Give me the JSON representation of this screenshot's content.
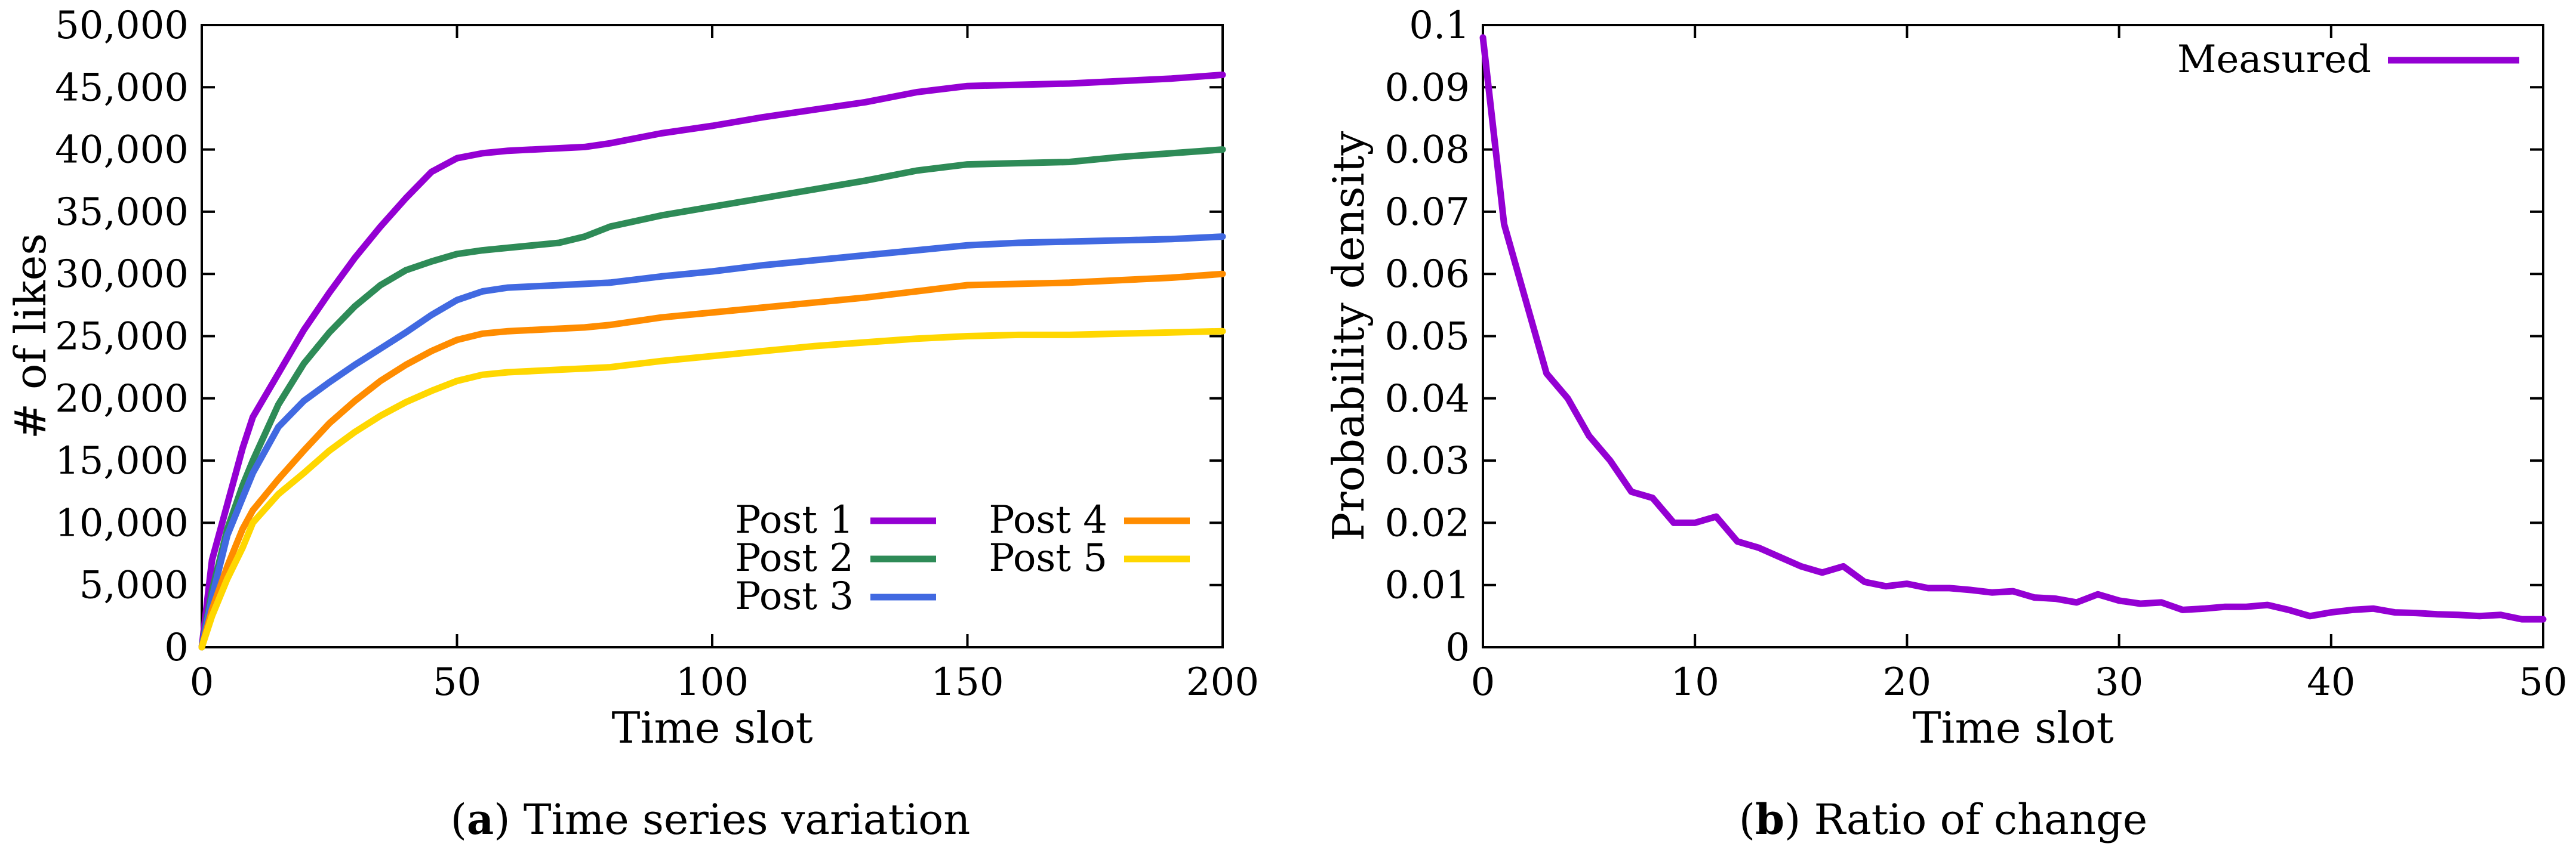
{
  "chart_data": [
    {
      "type": "line",
      "panel": "a",
      "caption_letter": "a",
      "caption_text": "Time series variation",
      "xlabel": "Time slot",
      "ylabel": "# of likes",
      "xlim": [
        0,
        200
      ],
      "ylim": [
        0,
        50000
      ],
      "xticks": [
        0,
        50,
        100,
        150,
        200
      ],
      "xtick_labels": [
        "0",
        "50",
        "100",
        "150",
        "200"
      ],
      "yticks": [
        0,
        5000,
        10000,
        15000,
        20000,
        25000,
        30000,
        35000,
        40000,
        45000,
        50000
      ],
      "ytick_labels": [
        "0",
        "5,000",
        "10,000",
        "15,000",
        "20,000",
        "25,000",
        "30,000",
        "35,000",
        "40,000",
        "45,000",
        "50,000"
      ],
      "legend_position": "bottom-right, two columns",
      "x": [
        0,
        2,
        5,
        8,
        10,
        15,
        20,
        25,
        30,
        35,
        40,
        45,
        50,
        55,
        60,
        70,
        75,
        80,
        90,
        100,
        110,
        120,
        130,
        140,
        150,
        160,
        170,
        180,
        190,
        200
      ],
      "series": [
        {
          "name": "Post 1",
          "color": "#9400d3",
          "values": [
            0,
            7000,
            11500,
            16000,
            18500,
            22000,
            25500,
            28500,
            31300,
            33800,
            36100,
            38200,
            39300,
            39700,
            39900,
            40100,
            40200,
            40500,
            41300,
            41900,
            42600,
            43200,
            43800,
            44600,
            45100,
            45200,
            45300,
            45500,
            45700,
            46000
          ]
        },
        {
          "name": "Post 2",
          "color": "#2e8b57",
          "values": [
            0,
            4500,
            9500,
            13000,
            15000,
            19500,
            22800,
            25300,
            27400,
            29100,
            30300,
            31000,
            31600,
            31900,
            32100,
            32500,
            33000,
            33800,
            34700,
            35400,
            36100,
            36800,
            37500,
            38300,
            38800,
            38900,
            39000,
            39400,
            39700,
            40000
          ]
        },
        {
          "name": "Post 3",
          "color": "#4169e1",
          "values": [
            0,
            4000,
            9000,
            12000,
            14000,
            17700,
            19800,
            21300,
            22700,
            24000,
            25300,
            26700,
            27900,
            28600,
            28900,
            29100,
            29200,
            29300,
            29800,
            30200,
            30700,
            31100,
            31500,
            31900,
            32300,
            32500,
            32600,
            32700,
            32800,
            33000
          ]
        },
        {
          "name": "Post 4",
          "color": "#ff8c00",
          "values": [
            0,
            3000,
            6500,
            9500,
            11000,
            13500,
            15800,
            18000,
            19800,
            21400,
            22700,
            23800,
            24700,
            25200,
            25400,
            25600,
            25700,
            25900,
            26500,
            26900,
            27300,
            27700,
            28100,
            28600,
            29100,
            29200,
            29300,
            29500,
            29700,
            30000
          ]
        },
        {
          "name": "Post 5",
          "color": "#ffd700",
          "values": [
            0,
            2500,
            5500,
            8000,
            10000,
            12300,
            14000,
            15800,
            17300,
            18600,
            19700,
            20600,
            21400,
            21900,
            22100,
            22300,
            22400,
            22500,
            23000,
            23400,
            23800,
            24200,
            24500,
            24800,
            25000,
            25100,
            25100,
            25200,
            25300,
            25400
          ]
        }
      ]
    },
    {
      "type": "line",
      "panel": "b",
      "caption_letter": "b",
      "caption_text": "Ratio of change",
      "xlabel": "Time slot",
      "ylabel": "Probability density",
      "xlim": [
        0,
        50
      ],
      "ylim": [
        0,
        0.1
      ],
      "xticks": [
        0,
        10,
        20,
        30,
        40,
        50
      ],
      "xtick_labels": [
        "0",
        "10",
        "20",
        "30",
        "40",
        "50"
      ],
      "yticks": [
        0,
        0.01,
        0.02,
        0.03,
        0.04,
        0.05,
        0.06,
        0.07,
        0.08,
        0.09,
        0.1
      ],
      "ytick_labels": [
        "0",
        "0.01",
        "0.02",
        "0.03",
        "0.04",
        "0.05",
        "0.06",
        "0.07",
        "0.08",
        "0.09",
        "0.1"
      ],
      "legend_position": "top-right",
      "x": [
        0,
        1,
        2,
        3,
        4,
        5,
        6,
        7,
        8,
        9,
        10,
        11,
        12,
        13,
        14,
        15,
        16,
        17,
        18,
        19,
        20,
        21,
        22,
        23,
        24,
        25,
        26,
        27,
        28,
        29,
        30,
        31,
        32,
        33,
        34,
        35,
        36,
        37,
        38,
        39,
        40,
        41,
        42,
        43,
        44,
        45,
        46,
        47,
        48,
        49,
        50
      ],
      "series": [
        {
          "name": "Measured",
          "color": "#9400d3",
          "values": [
            0.098,
            0.068,
            0.056,
            0.044,
            0.04,
            0.034,
            0.03,
            0.025,
            0.024,
            0.02,
            0.02,
            0.021,
            0.017,
            0.016,
            0.0145,
            0.013,
            0.012,
            0.013,
            0.0105,
            0.0098,
            0.0102,
            0.0095,
            0.0095,
            0.0092,
            0.0088,
            0.009,
            0.008,
            0.0078,
            0.0072,
            0.0085,
            0.0075,
            0.007,
            0.0072,
            0.006,
            0.0062,
            0.0065,
            0.0065,
            0.0068,
            0.006,
            0.005,
            0.0056,
            0.006,
            0.0062,
            0.0056,
            0.0055,
            0.0053,
            0.0052,
            0.005,
            0.0052,
            0.0045,
            0.0045
          ]
        }
      ]
    }
  ]
}
